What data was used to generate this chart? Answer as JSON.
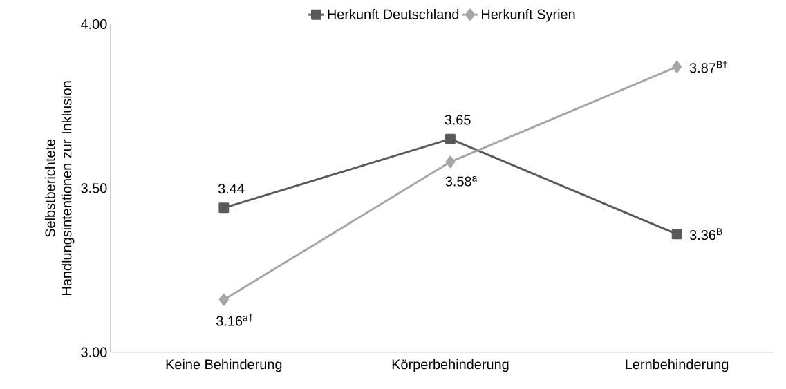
{
  "chart_data": {
    "type": "line",
    "ylabel": "Selbstberichtete  Handlungsintentionen zur Inklusion",
    "categories": [
      "Keine Behinderung",
      "Körperbehinderung",
      "Lernbehinderung"
    ],
    "series": [
      {
        "name": "Herkunft Deutschland",
        "color": "#595959",
        "marker": "square",
        "values": [
          3.44,
          3.65,
          3.36
        ],
        "value_labels": [
          "3.44",
          "3.65",
          "3.36$^{B}$"
        ]
      },
      {
        "name": "Herkunft Syrien",
        "color": "#a6a6a6",
        "marker": "diamond",
        "values": [
          3.16,
          3.58,
          3.87
        ],
        "value_labels": [
          "3.16$^{a†}$",
          "3.58$^{a}$",
          "3.87$^{B†}$"
        ]
      }
    ],
    "ylim": [
      3,
      4
    ],
    "yticks": [
      {
        "value": 3,
        "label": "3.00"
      },
      {
        "value": 3.5,
        "label": "3.50"
      },
      {
        "value": 4,
        "label": "4.00"
      }
    ],
    "grid": false,
    "legend": "top",
    "line_style": "solid"
  }
}
